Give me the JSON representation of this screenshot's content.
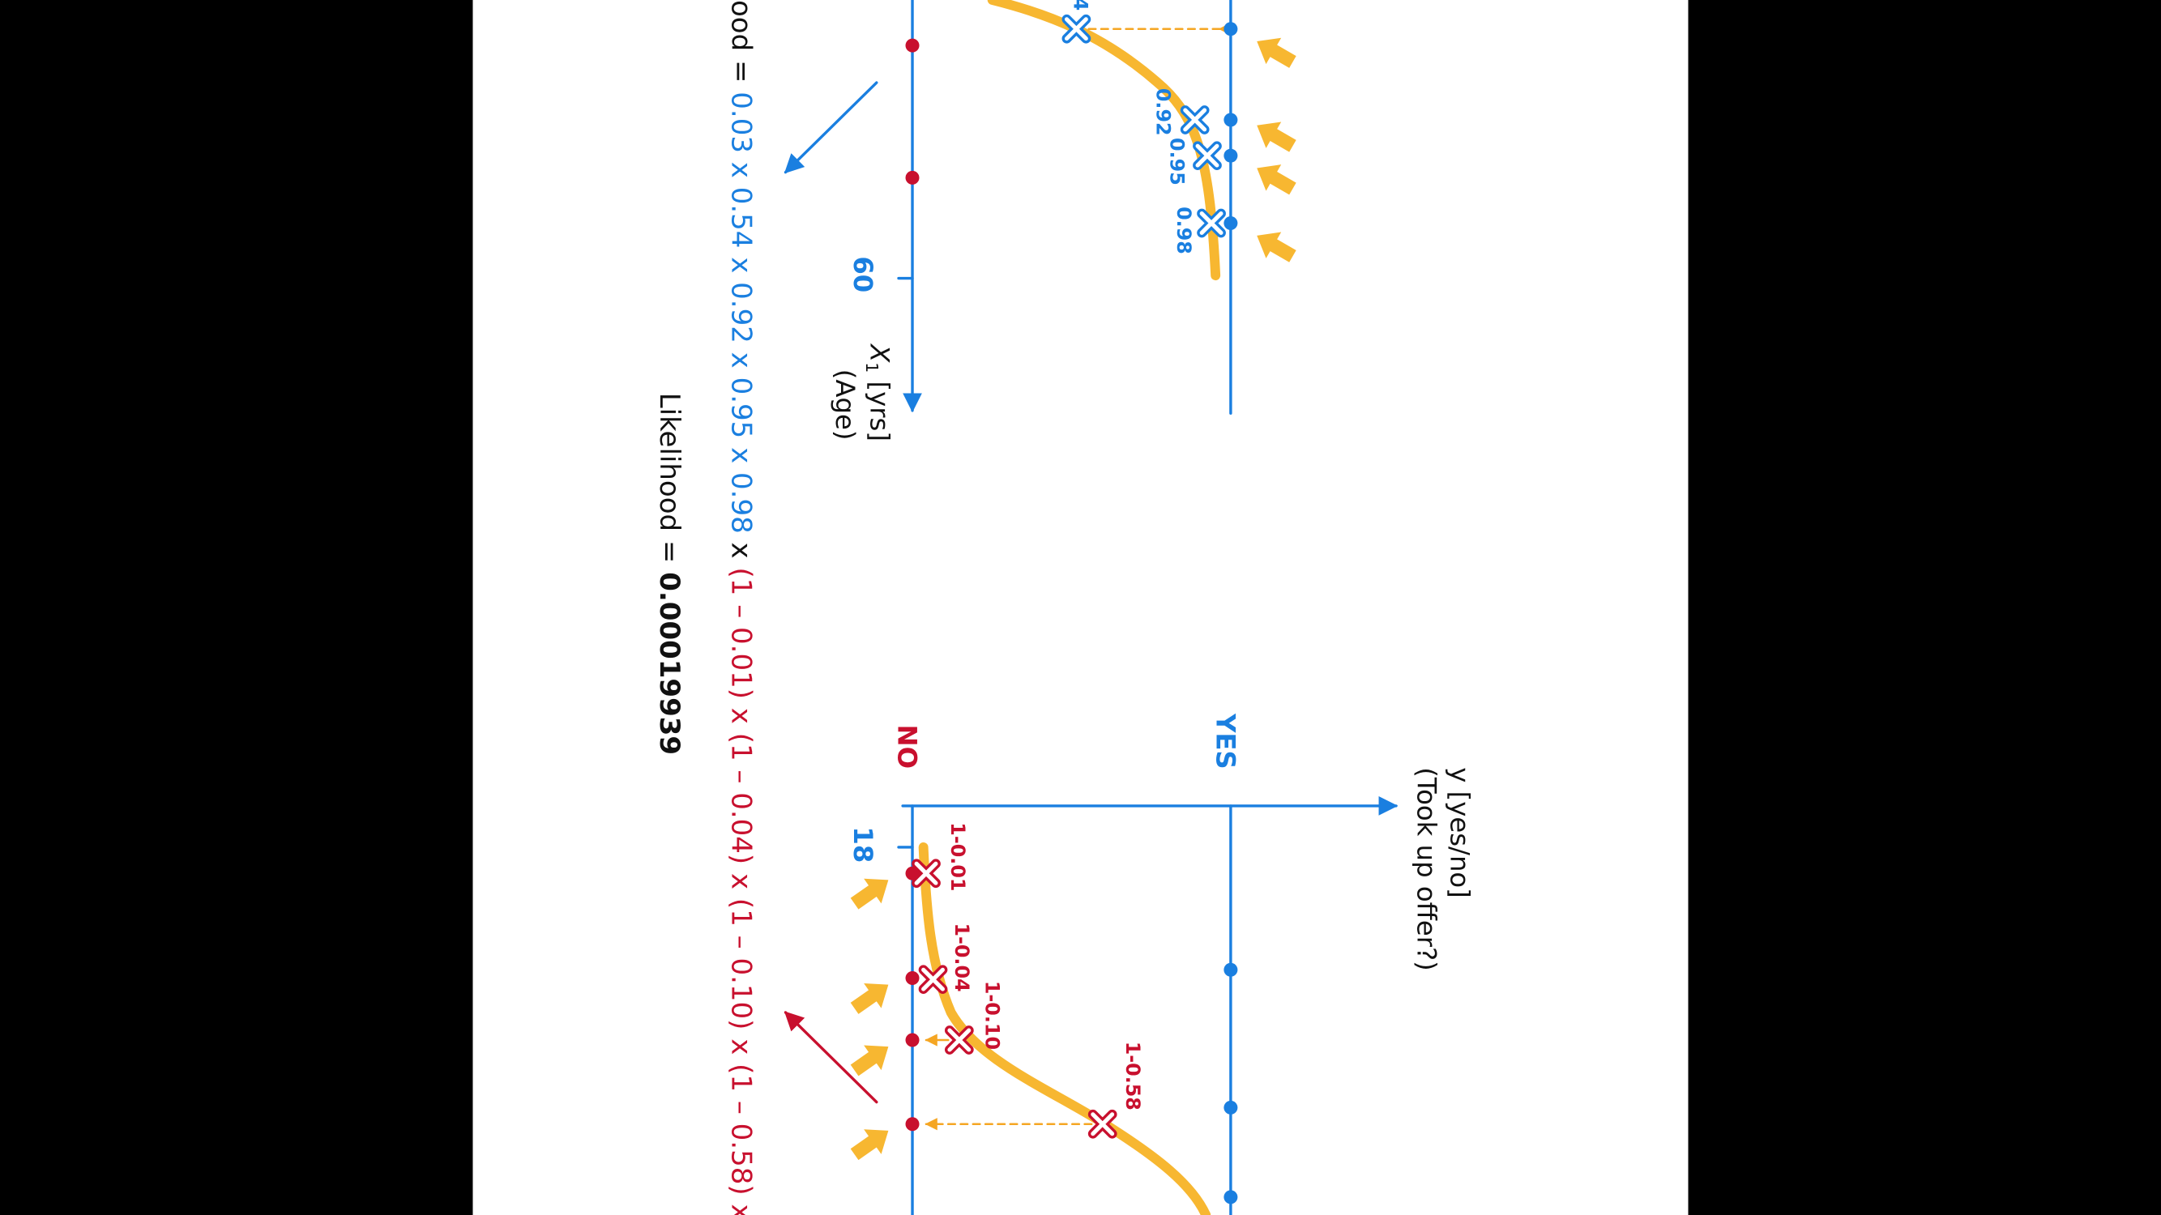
{
  "y_axis": {
    "label": "y [yes/no]",
    "sublabel": "(Took up offer?)",
    "yes": "YES",
    "no": "NO"
  },
  "x_axis": {
    "label": "X",
    "subscript": "1",
    "unit": " [yrs]",
    "sublabel": "(Age)",
    "ticks": [
      "60",
      "18"
    ]
  },
  "yes_probabilities": [
    "4",
    "0.92",
    "0.95",
    "0.98"
  ],
  "no_probabilities": [
    "1-0.01",
    "1-0.04",
    "1-0.10",
    "1-0.58"
  ],
  "formula": {
    "prefix": "ood = ",
    "yes_terms": "0.03 x 0.54 x 0.92 x 0.95 x 0.98",
    "joiner": " x ",
    "no_terms": "(1 – 0.01) x (1 – 0.04) x (1 – 0.10) x (1 – 0.58) x"
  },
  "result": {
    "label": "Likelihood = ",
    "value": "0.00019939"
  }
}
